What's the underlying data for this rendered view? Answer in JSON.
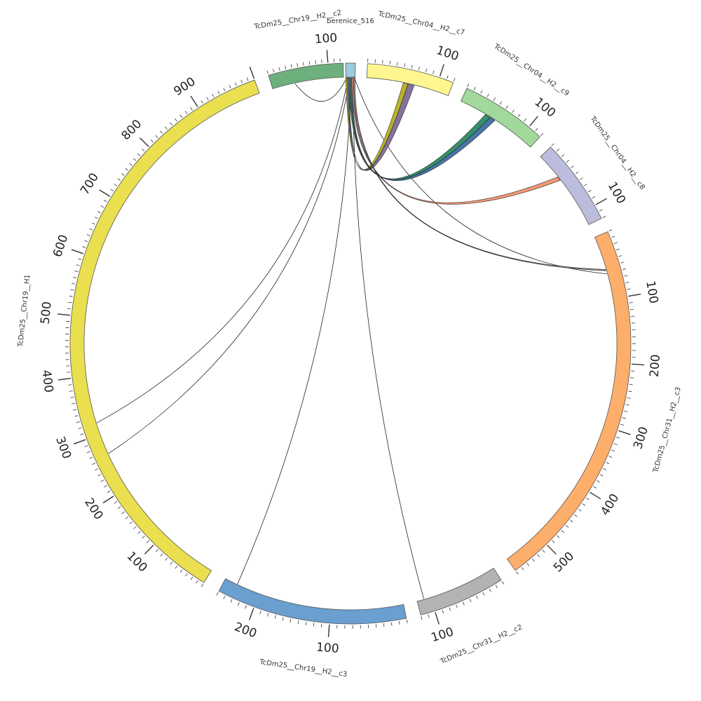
{
  "diagram": {
    "type": "circos",
    "segments": [
      {
        "id": "berenice",
        "label": "berenice_516",
        "length": 12,
        "color": "#9ecae1",
        "tick_labels": []
      },
      {
        "id": "chr04_c7",
        "label": "TcDm25__Chr04__H2__c7",
        "length": 120,
        "color": "#fff68f",
        "tick_labels": [
          "100"
        ]
      },
      {
        "id": "chr04_c9",
        "label": "TcDm25__Chr04__H2__c9",
        "length": 120,
        "color": "#a1d99b",
        "tick_labels": [
          "100"
        ]
      },
      {
        "id": "chr04_c8",
        "label": "TcDm25__Chr04__H2__c8",
        "length": 120,
        "color": "#bcbddc",
        "tick_labels": [
          "100"
        ]
      },
      {
        "id": "chr31_c3",
        "label": "TcDm25__Chr31__H2__c3",
        "length": 560,
        "color": "#fdae6b",
        "tick_labels": [
          "100",
          "200",
          "300",
          "400",
          "500"
        ]
      },
      {
        "id": "chr31_c2",
        "label": "TcDm25__Chr31__H2__c2",
        "length": 120,
        "color": "#b3b3b3",
        "tick_labels": [
          "100"
        ]
      },
      {
        "id": "chr19_c3",
        "label": "TcDm25__Chr19__H2__c3",
        "length": 250,
        "color": "#6a9fd0",
        "tick_labels": [
          "100",
          "200"
        ]
      },
      {
        "id": "chr19_h1",
        "label": "TcDm25__Chr19__H1",
        "length": 1000,
        "color": "#e9df4f",
        "tick_labels": [
          "100",
          "200",
          "300",
          "400",
          "500",
          "600",
          "700",
          "800",
          "900"
        ]
      },
      {
        "id": "chr19_c2",
        "label": "TcDm25__Chr19__H2__c2",
        "length": 125,
        "color": "#6db07e",
        "tick_labels": [
          "100"
        ]
      }
    ],
    "ribbons": [
      {
        "from": "berenice",
        "from_range": [
          0,
          2
        ],
        "to": "chr04_c7",
        "to_range": [
          53,
          60
        ],
        "color": "#b5b01e"
      },
      {
        "from": "berenice",
        "from_range": [
          2,
          4
        ],
        "to": "chr04_c7",
        "to_range": [
          60,
          69
        ],
        "color": "#7e6a98"
      },
      {
        "from": "berenice",
        "from_range": [
          4,
          6
        ],
        "to": "chr04_c9",
        "to_range": [
          40,
          48
        ],
        "color": "#2b8a62"
      },
      {
        "from": "berenice",
        "from_range": [
          6,
          8
        ],
        "to": "chr04_c9",
        "to_range": [
          48,
          56
        ],
        "color": "#3d6fa0"
      },
      {
        "from": "berenice",
        "from_range": [
          8,
          10
        ],
        "to": "chr04_c8",
        "to_range": [
          38,
          44
        ],
        "color": "#f2926f"
      },
      {
        "from": "berenice",
        "from_range": [
          10,
          12
        ],
        "to": "chr31_c3",
        "to_range": [
          53,
          55
        ],
        "color": "#888888"
      }
    ],
    "links": [
      {
        "from": "berenice",
        "from_pos": 1,
        "to": "chr19_c2",
        "to_pos": 40
      },
      {
        "from": "berenice",
        "from_pos": 3,
        "to": "chr19_h1",
        "to_pos": 320
      },
      {
        "from": "berenice",
        "from_pos": 5,
        "to": "chr19_h1",
        "to_pos": 265
      },
      {
        "from": "berenice",
        "from_pos": 7,
        "to": "chr19_c3",
        "to_pos": 232
      },
      {
        "from": "berenice",
        "from_pos": 9,
        "to": "chr31_c2",
        "to_pos": 110
      },
      {
        "from": "berenice",
        "from_pos": 11,
        "to": "chr31_c3",
        "to_pos": 60
      }
    ]
  }
}
